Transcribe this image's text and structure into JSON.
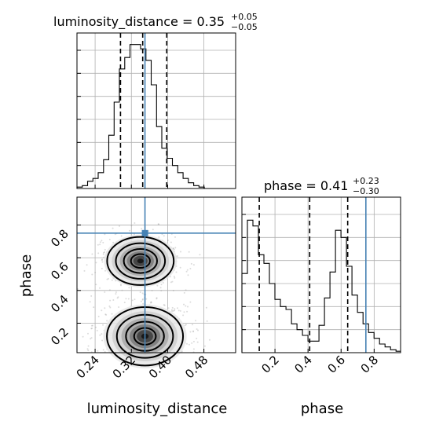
{
  "chart_data": {
    "type": "corner",
    "parameters": [
      "luminosity_distance",
      "phase"
    ],
    "axis_labels": {
      "x_bottom_left": "luminosity_distance",
      "x_bottom_right": "phase",
      "y_left": "phase"
    },
    "truths": {
      "luminosity_distance": 0.35,
      "phase": 0.75
    },
    "titles": [
      {
        "param": "luminosity_distance",
        "text": "luminosity_distance = 0.35",
        "median": 0.35,
        "plus": "+0.05",
        "minus": "−0.05",
        "quantiles": [
          0.296,
          0.345,
          0.398
        ]
      },
      {
        "param": "phase",
        "text": "phase = 0.41",
        "median": 0.41,
        "plus": "+0.23",
        "minus": "−0.30",
        "quantiles": [
          0.105,
          0.41,
          0.64
        ]
      }
    ],
    "panels": {
      "luminosity_distance_hist": {
        "type": "step-histogram",
        "xlim": [
          0.2,
          0.55
        ],
        "ylim": [
          0,
          1.08
        ],
        "xticks": [
          0.24,
          0.32,
          0.4,
          0.48
        ],
        "bin_width": 0.0117,
        "counts": [
          0.01,
          0.02,
          0.05,
          0.07,
          0.11,
          0.2,
          0.37,
          0.6,
          0.83,
          0.91,
          1.0,
          1.0,
          0.97,
          0.89,
          0.72,
          0.43,
          0.28,
          0.21,
          0.16,
          0.11,
          0.07,
          0.04,
          0.02,
          0.01,
          0.0,
          0.0,
          0.0,
          0.0,
          0.0,
          0.0
        ]
      },
      "phase_hist": {
        "type": "step-histogram",
        "xlim": [
          0.0,
          0.96
        ],
        "ylim": [
          0,
          1.08
        ],
        "xticks": [
          0.2,
          0.4,
          0.6,
          0.8
        ],
        "bin_width": 0.0333,
        "counts": [
          0.55,
          0.92,
          0.88,
          0.68,
          0.62,
          0.48,
          0.37,
          0.32,
          0.3,
          0.2,
          0.16,
          0.12,
          0.08,
          0.08,
          0.19,
          0.38,
          0.56,
          0.85,
          0.8,
          0.6,
          0.4,
          0.28,
          0.2,
          0.14,
          0.1,
          0.06,
          0.04,
          0.02,
          0.01
        ]
      },
      "joint": {
        "type": "2d-density-contour",
        "xlim": [
          0.2,
          0.55
        ],
        "ylim": [
          0.02,
          0.97
        ],
        "xticks": [
          0.24,
          0.32,
          0.4,
          0.48
        ],
        "yticks": [
          0.2,
          0.4,
          0.6,
          0.8
        ],
        "modes": [
          {
            "x": 0.34,
            "y": 0.58,
            "sx": 0.035,
            "sy": 0.07,
            "weight": 0.45
          },
          {
            "x": 0.35,
            "y": 0.12,
            "sx": 0.04,
            "sy": 0.085,
            "weight": 0.55
          }
        ]
      }
    }
  }
}
